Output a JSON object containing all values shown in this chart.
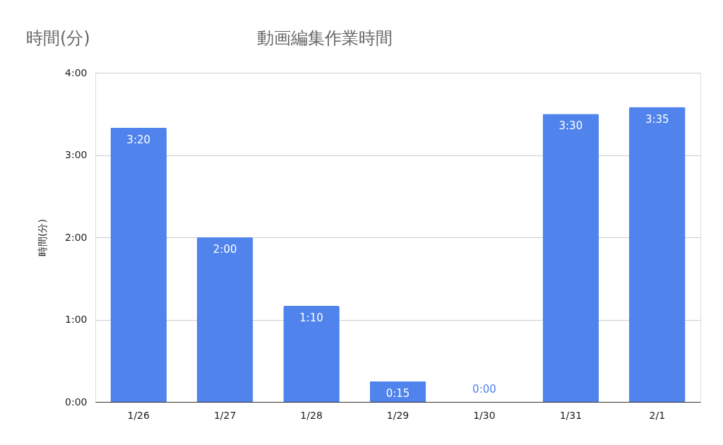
{
  "chart_data": {
    "type": "bar",
    "title": "動画編集作業時間",
    "ylabel": "時間(分)",
    "annotations": [
      "時間(分)"
    ],
    "categories": [
      "1/26",
      "1/27",
      "1/28",
      "1/29",
      "1/30",
      "1/31",
      "2/1"
    ],
    "values": [
      3.333,
      2,
      1.167,
      0.25,
      0,
      3.5,
      3.583
    ],
    "value_labels": [
      "3:20",
      "2:00",
      "1:10",
      "0:15",
      "0:00",
      "3:30",
      "3:35"
    ],
    "color": "#5083ec",
    "ylim": [
      0,
      4
    ],
    "yticks": [
      {
        "value": 0,
        "label": "0:00"
      },
      {
        "value": 1,
        "label": "1:00"
      },
      {
        "value": 2,
        "label": "2:00"
      },
      {
        "value": 3,
        "label": "3:00"
      },
      {
        "value": 4,
        "label": "4:00"
      }
    ],
    "grid": "y"
  }
}
